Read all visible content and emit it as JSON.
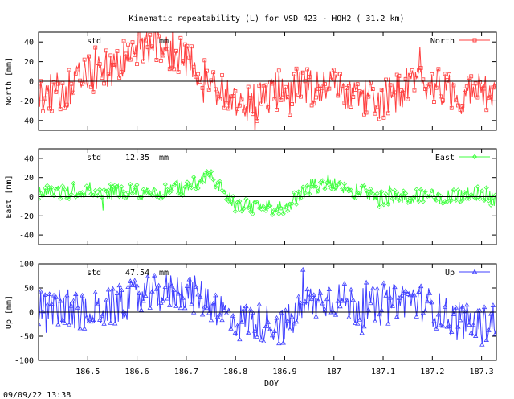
{
  "chart_data": {
    "type": "line",
    "title": "Kinematic repeatability (L) for VSD 423 - HOH2  ( 31.2 km)",
    "xlabel": "DOY",
    "xlim": [
      186.4,
      187.33
    ],
    "xticks": [
      "186.5",
      "186.6",
      "186.7",
      "186.8",
      "186.9",
      "187",
      "187.1",
      "187.2",
      "187.3"
    ],
    "xtick_values": [
      186.5,
      186.6,
      186.7,
      186.8,
      186.9,
      187.0,
      187.1,
      187.2,
      187.3
    ],
    "footer": "09/09/22 13:38",
    "grid": false,
    "legend_position": "top-right",
    "panels": [
      {
        "id": "north",
        "series_name": "North",
        "ylabel": "North [mm]",
        "ylim": [
          -50,
          50
        ],
        "yticks": [
          "40",
          "20",
          "0",
          "-20",
          "-40"
        ],
        "ytick_values": [
          40,
          20,
          0,
          -20,
          -40
        ],
        "std_label": "std",
        "std_value": "",
        "std_unit": "mm",
        "color": "#ff4040",
        "marker": "square",
        "profile": {
          "x": [
            186.4,
            186.45,
            186.5,
            186.55,
            186.6,
            186.65,
            186.7,
            186.75,
            186.8,
            186.85,
            186.9,
            186.95,
            187.0,
            187.05,
            187.1,
            187.15,
            187.2,
            187.25,
            187.3,
            187.33
          ],
          "y": [
            -15,
            -10,
            5,
            15,
            32,
            38,
            20,
            2,
            -25,
            -20,
            -5,
            -5,
            -5,
            -15,
            -20,
            -5,
            0,
            -15,
            -10,
            -20
          ]
        },
        "noise": 20
      },
      {
        "id": "east",
        "series_name": "East",
        "ylabel": "East [mm]",
        "ylim": [
          -50,
          50
        ],
        "yticks": [
          "40",
          "20",
          "0",
          "-20",
          "-40"
        ],
        "ytick_values": [
          40,
          20,
          0,
          -20,
          -40
        ],
        "std_label": "std",
        "std_value": "12.35",
        "std_unit": "mm",
        "color": "#40ff40",
        "marker": "diamond",
        "profile": {
          "x": [
            186.4,
            186.45,
            186.5,
            186.55,
            186.6,
            186.65,
            186.7,
            186.75,
            186.8,
            186.85,
            186.9,
            186.95,
            187.0,
            187.05,
            187.1,
            187.15,
            187.2,
            187.25,
            187.3,
            187.33
          ],
          "y": [
            5,
            5,
            8,
            5,
            5,
            5,
            10,
            20,
            -10,
            -10,
            -12,
            10,
            15,
            5,
            0,
            0,
            0,
            0,
            5,
            -5
          ]
        },
        "noise": 8
      },
      {
        "id": "up",
        "series_name": "Up",
        "ylabel": "Up [mm]",
        "ylim": [
          -100,
          100
        ],
        "yticks": [
          "100",
          "50",
          "0",
          "-50",
          "-100"
        ],
        "ytick_values": [
          100,
          50,
          0,
          -50,
          -100
        ],
        "std_label": "std",
        "std_value": "47.54",
        "std_unit": "mm",
        "color": "#4040ff",
        "marker": "triangle",
        "profile": {
          "x": [
            186.4,
            186.45,
            186.5,
            186.55,
            186.6,
            186.65,
            186.7,
            186.75,
            186.8,
            186.85,
            186.9,
            186.95,
            187.0,
            187.05,
            187.1,
            187.15,
            187.2,
            187.25,
            187.3,
            187.33
          ],
          "y": [
            -10,
            10,
            0,
            10,
            30,
            40,
            45,
            20,
            -20,
            -20,
            -30,
            20,
            30,
            10,
            10,
            30,
            10,
            -20,
            -30,
            -10
          ]
        },
        "noise": 40
      }
    ]
  }
}
